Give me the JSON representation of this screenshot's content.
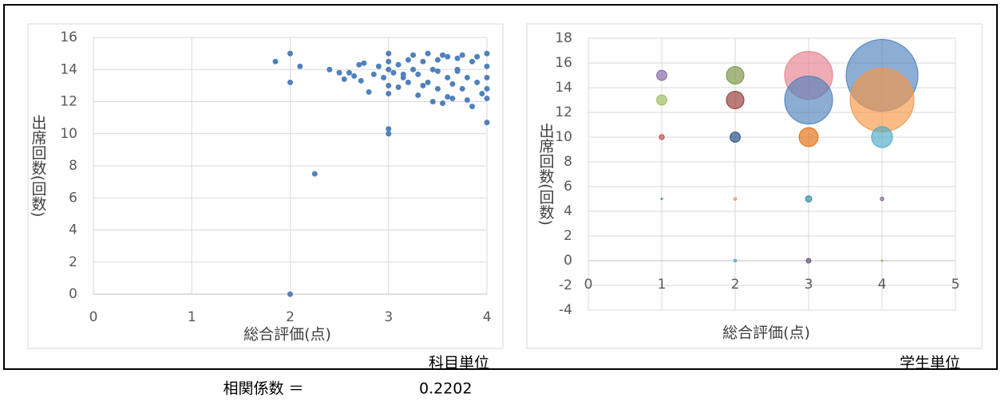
{
  "chart_data": [
    {
      "type": "scatter",
      "x_label": "総合評価(点)",
      "y_label": "出席回数(回数)",
      "caption": "科目単位",
      "color": "#4f81bd",
      "grid": true,
      "xlim": [
        0,
        4
      ],
      "xticks": [
        0,
        1,
        2,
        3,
        4
      ],
      "ylim": [
        0,
        16
      ],
      "yticks": [
        0,
        2,
        4,
        6,
        8,
        10,
        12,
        14,
        16
      ],
      "x": [
        2,
        2,
        2,
        1.85,
        2.1,
        2.25,
        2.4,
        2.5,
        2.55,
        2.6,
        2.65,
        2.7,
        2.72,
        2.75,
        2.8,
        2.85,
        2.9,
        2.95,
        3,
        3,
        3,
        3,
        3,
        3,
        3,
        3.05,
        3.1,
        3.1,
        3.15,
        3.2,
        3.2,
        3.25,
        3.3,
        3.3,
        3.35,
        3.4,
        3.4,
        3.45,
        3.5,
        3.5,
        3.5,
        3.55,
        3.6,
        3.6,
        3.65,
        3.7,
        3.7,
        3.75,
        3.8,
        3.8,
        3.85,
        3.9,
        3.9,
        3.95,
        4,
        4,
        4,
        4,
        4,
        4,
        3.45,
        3.55,
        3.65,
        3.75,
        3.85,
        3.25,
        3.15,
        3.35,
        3.6,
        3.7
      ],
      "y": [
        0,
        15,
        13.2,
        14.5,
        14.2,
        7.5,
        14,
        13.8,
        13.4,
        13.8,
        13.6,
        14.3,
        13.3,
        14.4,
        12.6,
        13.7,
        14.2,
        13.5,
        15,
        14.5,
        14,
        13,
        12.5,
        10.3,
        10,
        13.8,
        14.3,
        12.9,
        13.5,
        14.6,
        13.2,
        14,
        13.7,
        12.4,
        14.5,
        13.2,
        15,
        14,
        13.9,
        12.8,
        14.6,
        11.9,
        13.5,
        14.8,
        12.2,
        13.9,
        14.7,
        12.8,
        13.5,
        12.1,
        14.5,
        13.2,
        14.8,
        12.5,
        15,
        14.2,
        13.5,
        12.8,
        12.2,
        10.7,
        12.0,
        14.9,
        13.1,
        14.9,
        11.7,
        14.9,
        13.7,
        13.0,
        12.3,
        14.0
      ]
    },
    {
      "type": "bubble",
      "x_label": "総合評価(点)",
      "y_label": "出席回数(回数)",
      "caption": "学生単位",
      "grid": true,
      "xlim": [
        0,
        5
      ],
      "xticks": [
        0,
        1,
        2,
        3,
        4,
        5
      ],
      "ylim": [
        -4,
        18
      ],
      "yticks": [
        -4,
        -2,
        0,
        2,
        4,
        6,
        8,
        10,
        12,
        14,
        16,
        18
      ],
      "x": [
        1,
        2,
        3,
        4,
        1,
        2,
        3,
        4,
        1,
        2,
        3,
        4,
        1,
        2,
        3,
        4,
        2,
        3,
        4
      ],
      "y": [
        15,
        15,
        15,
        15,
        13,
        13,
        13,
        13,
        10,
        10,
        10,
        10,
        5,
        5,
        5,
        5,
        0,
        0,
        0
      ],
      "sizes": [
        4,
        12,
        89,
        200,
        4,
        12,
        89,
        158,
        1,
        4,
        14,
        17,
        0.1,
        0.3,
        1.5,
        0.5,
        0.3,
        0.8,
        0.1
      ],
      "colors": [
        "#8064a2",
        "#76923c",
        "#e6808c",
        "#4f81bd",
        "#9bbb59",
        "#943634",
        "#4f81bd",
        "#f79646",
        "#c0504d",
        "#1f497d",
        "#e46c0a",
        "#4bacc6",
        "#4f81bd",
        "#f79646",
        "#31859c",
        "#8064a2",
        "#4bacc6",
        "#604a7b",
        "#9bbb59"
      ]
    }
  ],
  "footer": {
    "label": "相関係数 ＝",
    "value": 0.2202
  }
}
